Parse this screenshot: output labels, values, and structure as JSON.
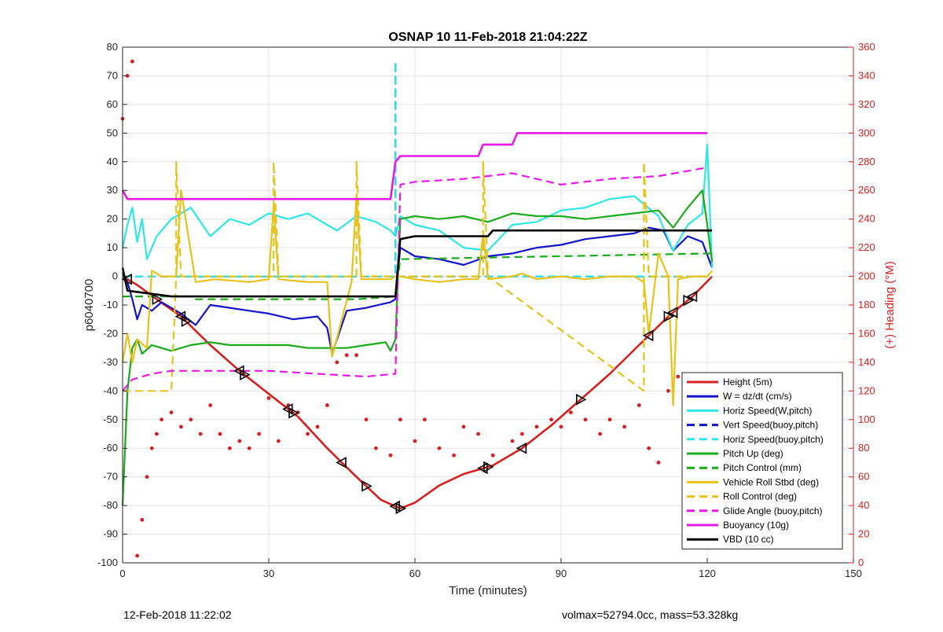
{
  "chart_data": {
    "type": "line",
    "title": "OSNAP 10 11-Feb-2018 21:04:22Z",
    "xlabel": "Time (minutes)",
    "ylabel": "p6040700",
    "y2label": "(+) Heading (°M)",
    "xlim": [
      0,
      150
    ],
    "ylim": [
      -100,
      80
    ],
    "y2lim": [
      0,
      360
    ],
    "xticks": [
      0,
      30,
      60,
      90,
      120,
      150
    ],
    "yticks": [
      -100,
      -90,
      -80,
      -70,
      -60,
      -50,
      -40,
      -30,
      -20,
      -10,
      0,
      10,
      20,
      30,
      40,
      50,
      60,
      70,
      80
    ],
    "y2ticks": [
      0,
      20,
      40,
      60,
      80,
      100,
      120,
      140,
      160,
      180,
      200,
      220,
      240,
      260,
      280,
      300,
      320,
      340,
      360
    ],
    "grid": true,
    "legend_position": "bottom-right",
    "colors": {
      "height": "#d62020",
      "w": "#1414c8",
      "horiz_cyan": "#2ee6e6",
      "pitch": "#1aaa1a",
      "roll": "#e6c21a",
      "glide": "#e61ae6",
      "buoyancy": "#e61ae6",
      "vbd": "#000000",
      "heading": "#d62020"
    },
    "series": [
      {
        "name": "Height (5m)",
        "key": "height",
        "style": "solid",
        "x": [
          0,
          3,
          7,
          12,
          18,
          24,
          30,
          36,
          42,
          48,
          53,
          57,
          60,
          65,
          70,
          76,
          82,
          88,
          94,
          100,
          106,
          112,
          117,
          121
        ],
        "values": [
          0,
          -3,
          -8,
          -14,
          -24,
          -33,
          -41,
          -49,
          -60,
          -70,
          -78,
          -81,
          -79,
          -73,
          -69,
          -66,
          -60,
          -52,
          -43,
          -34,
          -24,
          -14,
          -7,
          0
        ]
      },
      {
        "name": "W = dz/dt (cm/s)",
        "key": "w",
        "style": "solid",
        "x": [
          0,
          1,
          2,
          3,
          4,
          6,
          8,
          12,
          15,
          18,
          22,
          26,
          30,
          35,
          40,
          42,
          43,
          46,
          50,
          55,
          56,
          57,
          60,
          65,
          70,
          75,
          80,
          85,
          90,
          95,
          100,
          105,
          108,
          111,
          113,
          116,
          119,
          121
        ],
        "values": [
          1,
          -2,
          -8,
          -15,
          -10,
          -12,
          -9,
          -13,
          -17,
          -10,
          -11,
          -12,
          -13,
          -15,
          -14,
          -18,
          -27,
          -12,
          -11,
          -9,
          -8,
          10,
          7,
          6,
          4,
          7,
          8,
          10,
          11,
          13,
          14,
          15,
          17,
          16,
          9,
          14,
          12,
          3
        ]
      },
      {
        "name": "Horiz Speed(W,pitch)",
        "key": "horiz_cyan",
        "style": "solid",
        "x": [
          0,
          1,
          2,
          3,
          4,
          5,
          7,
          10,
          14,
          18,
          22,
          26,
          30,
          34,
          38,
          42,
          44,
          48,
          52,
          55,
          56,
          57,
          60,
          65,
          70,
          75,
          80,
          85,
          90,
          95,
          100,
          105,
          110,
          113,
          116,
          119,
          120,
          121
        ],
        "values": [
          10,
          18,
          24,
          12,
          20,
          6,
          14,
          20,
          24,
          14,
          20,
          18,
          22,
          20,
          22,
          18,
          16,
          21,
          19,
          16,
          14,
          21,
          18,
          16,
          10,
          9,
          18,
          19,
          23,
          24,
          27,
          28,
          21,
          9,
          18,
          22,
          46,
          3
        ]
      },
      {
        "name": "Vert Speed(buoy,pitch)",
        "key": "w",
        "style": "dashed",
        "x": [
          0,
          56,
          56,
          56,
          57,
          121
        ],
        "values": [
          0,
          0,
          75,
          0,
          0,
          0
        ],
        "hidden_in_plot": false
      },
      {
        "name": "Horiz Speed(buoy,pitch)",
        "key": "horiz_cyan",
        "style": "dashed",
        "x": [
          0,
          55,
          56,
          56,
          56,
          57,
          121
        ],
        "values": [
          0,
          0,
          0,
          75,
          0,
          0,
          0
        ]
      },
      {
        "name": "Pitch Up (deg)",
        "key": "pitch",
        "style": "solid",
        "x": [
          0,
          1,
          2,
          3,
          4,
          6,
          8,
          10,
          14,
          18,
          22,
          26,
          30,
          34,
          38,
          42,
          46,
          50,
          54,
          55,
          56,
          57,
          60,
          65,
          70,
          75,
          80,
          85,
          90,
          95,
          100,
          105,
          110,
          113,
          116,
          119,
          120,
          121
        ],
        "values": [
          -80,
          -40,
          -25,
          -22,
          -27,
          -24,
          -25,
          -26,
          -24,
          -23,
          -24,
          -24,
          -24,
          -24,
          -25,
          -25,
          -25,
          -24,
          -23,
          -26,
          -22,
          20,
          21,
          20,
          21,
          19,
          22,
          21,
          21,
          20,
          21,
          22,
          23,
          17,
          24,
          30,
          18,
          5
        ]
      },
      {
        "name": "Pitch Control (mm)",
        "key": "pitch",
        "style": "dashed",
        "x": [
          0,
          15,
          15,
          48,
          56,
          57,
          121
        ],
        "values": [
          -7,
          -7,
          -8,
          -8,
          -7,
          6,
          8
        ]
      },
      {
        "name": "Vehicle Roll Stbd (deg)",
        "key": "roll",
        "style": "solid",
        "x": [
          0,
          1,
          2,
          3,
          5,
          6,
          8,
          11,
          12,
          15,
          19,
          26,
          30,
          31,
          32,
          38,
          42,
          43,
          47,
          48,
          49,
          55,
          56,
          57,
          60,
          65,
          70,
          73,
          74,
          75,
          80,
          82,
          85,
          90,
          95,
          100,
          105,
          107,
          108,
          110,
          112,
          113,
          114,
          117,
          120,
          121
        ],
        "values": [
          -30,
          -20,
          -30,
          -22,
          -25,
          2,
          0,
          0,
          30,
          -2,
          -1,
          -2,
          -1,
          25,
          -1,
          -2,
          -2,
          -28,
          -2,
          28,
          -1,
          -1,
          0,
          0,
          -1,
          -2,
          -1,
          -1,
          15,
          -1,
          0,
          1,
          -1,
          0,
          -1,
          0,
          0,
          -2,
          -20,
          8,
          0,
          -45,
          -1,
          0,
          0,
          2
        ]
      },
      {
        "name": "Roll Control (deg)",
        "key": "roll",
        "style": "dashed",
        "x": [
          0,
          10,
          11,
          11,
          12,
          30,
          31,
          31,
          32,
          47,
          48,
          48,
          49,
          56,
          57,
          74,
          74,
          75,
          107,
          107,
          108,
          121
        ],
        "values": [
          -40,
          -40,
          0,
          40,
          0,
          0,
          0,
          40,
          0,
          0,
          0,
          40,
          0,
          0,
          0,
          0,
          40,
          0,
          -40,
          40,
          0,
          0
        ]
      },
      {
        "name": "Glide Angle (buoy,pitch)",
        "key": "glide",
        "style": "dashed",
        "x": [
          0,
          2,
          6,
          10,
          20,
          30,
          40,
          50,
          56,
          57,
          60,
          70,
          80,
          90,
          100,
          110,
          120
        ],
        "values": [
          -40,
          -36,
          -34,
          -33,
          -33,
          -33,
          -34,
          -35,
          -34,
          32,
          33,
          34,
          36,
          32,
          34,
          35,
          38
        ]
      },
      {
        "name": "Buoyancy (10g)",
        "key": "buoyancy",
        "style": "solid",
        "x": [
          0,
          1,
          55,
          56,
          57,
          73,
          74,
          80,
          81,
          120
        ],
        "values": [
          30,
          27,
          27,
          40,
          42,
          42,
          46,
          46,
          50,
          50
        ]
      },
      {
        "name": "VBD (10 cc)",
        "key": "vbd",
        "style": "solid",
        "x": [
          0,
          1,
          10,
          55,
          56,
          57,
          60,
          75,
          76,
          80,
          81,
          121
        ],
        "values": [
          3,
          -5,
          -7,
          -7,
          -7,
          13,
          14,
          14,
          16,
          16,
          16,
          16
        ]
      },
      {
        "name": "Heading",
        "key": "heading",
        "style": "dots",
        "axis": "right",
        "x": [
          0,
          1,
          2,
          3,
          4,
          5,
          6,
          7,
          8,
          10,
          12,
          14,
          16,
          18,
          20,
          22,
          24,
          26,
          28,
          30,
          32,
          34,
          36,
          38,
          40,
          42,
          44,
          46,
          48,
          50,
          52,
          55,
          57,
          60,
          62,
          65,
          68,
          70,
          73,
          76,
          80,
          82,
          85,
          88,
          90,
          92,
          95,
          98,
          100,
          103,
          106,
          108,
          110,
          112,
          114,
          116
        ],
        "values": [
          310,
          340,
          350,
          5,
          30,
          60,
          80,
          90,
          100,
          105,
          95,
          100,
          90,
          110,
          90,
          80,
          85,
          80,
          90,
          115,
          85,
          110,
          105,
          90,
          95,
          110,
          140,
          145,
          145,
          100,
          80,
          75,
          100,
          85,
          100,
          80,
          75,
          95,
          90,
          75,
          85,
          90,
          95,
          100,
          95,
          105,
          100,
          90,
          100,
          95,
          110,
          80,
          70,
          120,
          130,
          110
        ]
      }
    ],
    "legend": [
      "Height (5m)",
      "W = dz/dt (cm/s)",
      "Horiz Speed(W,pitch)",
      "Vert Speed(buoy,pitch)",
      "Horiz Speed(buoy,pitch)",
      "Pitch Up (deg)",
      "Pitch Control (mm)",
      "Vehicle Roll Stbd (deg)",
      "Roll Control (deg)",
      "Glide Angle (buoy,pitch)",
      "Buoyancy (10g)",
      "VBD (10 cc)"
    ],
    "markers_on_height_x": [
      1,
      7,
      12,
      13,
      24,
      25,
      34,
      35,
      45,
      50,
      56,
      57,
      74,
      75,
      82,
      94,
      108,
      112,
      113,
      116,
      117
    ]
  },
  "footer": {
    "left": "12-Feb-2018 11:22:02",
    "right": "volmax=52794.0cc, mass=53.328kg"
  }
}
